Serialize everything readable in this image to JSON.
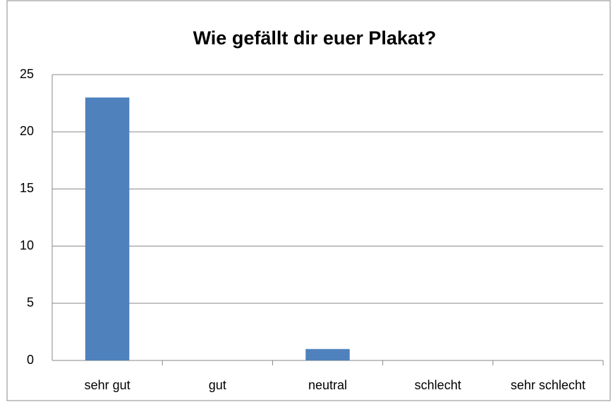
{
  "chart_data": {
    "type": "bar",
    "title": "Wie gefällt dir euer Plakat?",
    "categories": [
      "sehr gut",
      "gut",
      "neutral",
      "schlecht",
      "sehr schlecht"
    ],
    "values": [
      23,
      0,
      1,
      0,
      0
    ],
    "color": "#4f81bd",
    "ylim": [
      0,
      25
    ],
    "yticks": [
      0,
      5,
      10,
      15,
      20,
      25
    ],
    "grid": true
  }
}
